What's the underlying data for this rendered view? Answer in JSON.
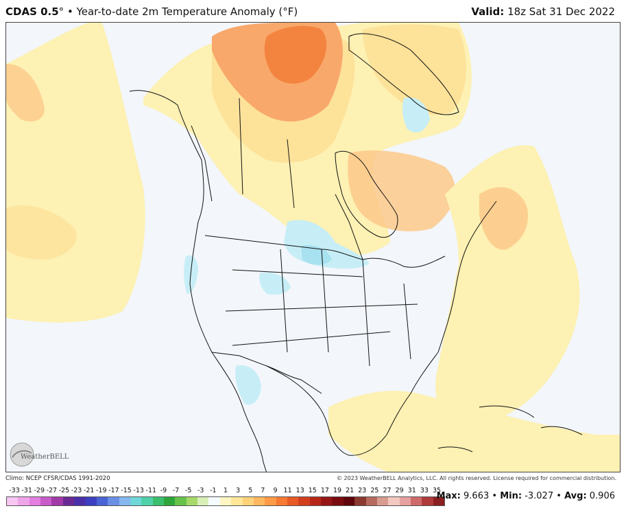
{
  "header": {
    "model": "CDAS 0.5",
    "degree_mark": "°",
    "separator": " • ",
    "title": "Year-to-date 2m Temperature Anomaly (°F)",
    "valid_label": "Valid:",
    "valid_value": "18z Sat 31 Dec 2022"
  },
  "footer": {
    "climo": "Climo: NCEP CFSR/CDAS 1991-2020",
    "copyright": "© 2023 WeatherBELL Analytics, LLC. All rights reserved. License required for commercial distribution.",
    "logo_text": "WeatherBELL"
  },
  "legend": {
    "ticks": [
      "-33",
      "-31",
      "-29",
      "-27",
      "-25",
      "-23",
      "-21",
      "-19",
      "-17",
      "-15",
      "-13",
      "-11",
      "-9",
      "-7",
      "-5",
      "-3",
      "-1",
      "1",
      "3",
      "5",
      "7",
      "9",
      "11",
      "13",
      "15",
      "17",
      "19",
      "21",
      "23",
      "25",
      "27",
      "29",
      "31",
      "33",
      "35"
    ],
    "colors": [
      "#f7c6f2",
      "#f0a4ea",
      "#e27fe0",
      "#c85bc9",
      "#a23aa7",
      "#6b2a93",
      "#4b2fa8",
      "#3c3fc2",
      "#4a63d6",
      "#6a90e6",
      "#86b7ee",
      "#6fd7d9",
      "#4fd2a9",
      "#3bbf6c",
      "#2fa63c",
      "#67c24a",
      "#a6d96a",
      "#d8f0b8",
      "#f5fbff",
      "#fff6c2",
      "#ffe699",
      "#ffd27a",
      "#ffb85f",
      "#ff9a48",
      "#f77a34",
      "#e85a26",
      "#d23e1e",
      "#b82619",
      "#961515",
      "#7a0c10",
      "#5e060c",
      "#8a3a30",
      "#b56b5e",
      "#d89b90",
      "#f2c8c0",
      "#e7a0a0",
      "#cf6a6a",
      "#b03a3a",
      "#8c1f1f"
    ],
    "stats": {
      "max_label": "Max:",
      "max_value": "9.663",
      "min_label": "Min:",
      "min_value": "-3.027",
      "avg_label": "Avg:",
      "avg_value": "0.906"
    }
  },
  "map_colors": {
    "background": "#f3f6fb",
    "warm_1": "#fdf1b3",
    "warm_2": "#fde29a",
    "warm_3": "#fbc98a",
    "warm_4": "#f8a86a",
    "warm_5": "#f3843f",
    "cool_1": "#c7eef6",
    "cool_2": "#a8e1f0",
    "border": "#111111"
  }
}
